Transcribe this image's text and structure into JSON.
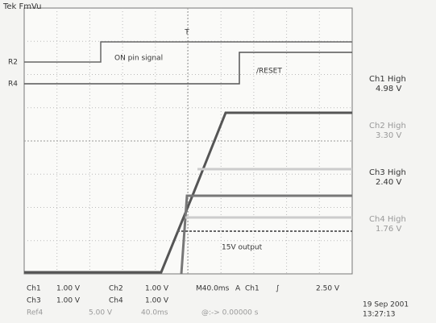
{
  "header": {
    "title": "Tek FmVu"
  },
  "markers": [
    "R2",
    "R4"
  ],
  "annotations": {
    "on_pin": "ON pin signal",
    "reset": "/RESET",
    "output": "15V output"
  },
  "readouts": [
    {
      "name": "Ch1 High",
      "value": "4.98 V"
    },
    {
      "name": "Ch2 High",
      "value": "3.30 V"
    },
    {
      "name": "Ch3 High",
      "value": "2.40 V"
    },
    {
      "name": "Ch4 High",
      "value": "1.76 V"
    }
  ],
  "settings": {
    "row1": [
      "Ch1",
      "1.00 V",
      "Ch2",
      "1.00 V",
      "M40.0ms",
      "A",
      "Ch1",
      "∫",
      "2.50 V"
    ],
    "row2": [
      "Ch3",
      "1.00 V",
      "Ch4",
      "1.00 V"
    ],
    "row3": [
      "Ref4",
      "5.00 V",
      "40.0ms",
      "@:-> 0.00000 s"
    ]
  },
  "timestamp": {
    "date": "19 Sep 2001",
    "time": "13:27:13"
  }
}
